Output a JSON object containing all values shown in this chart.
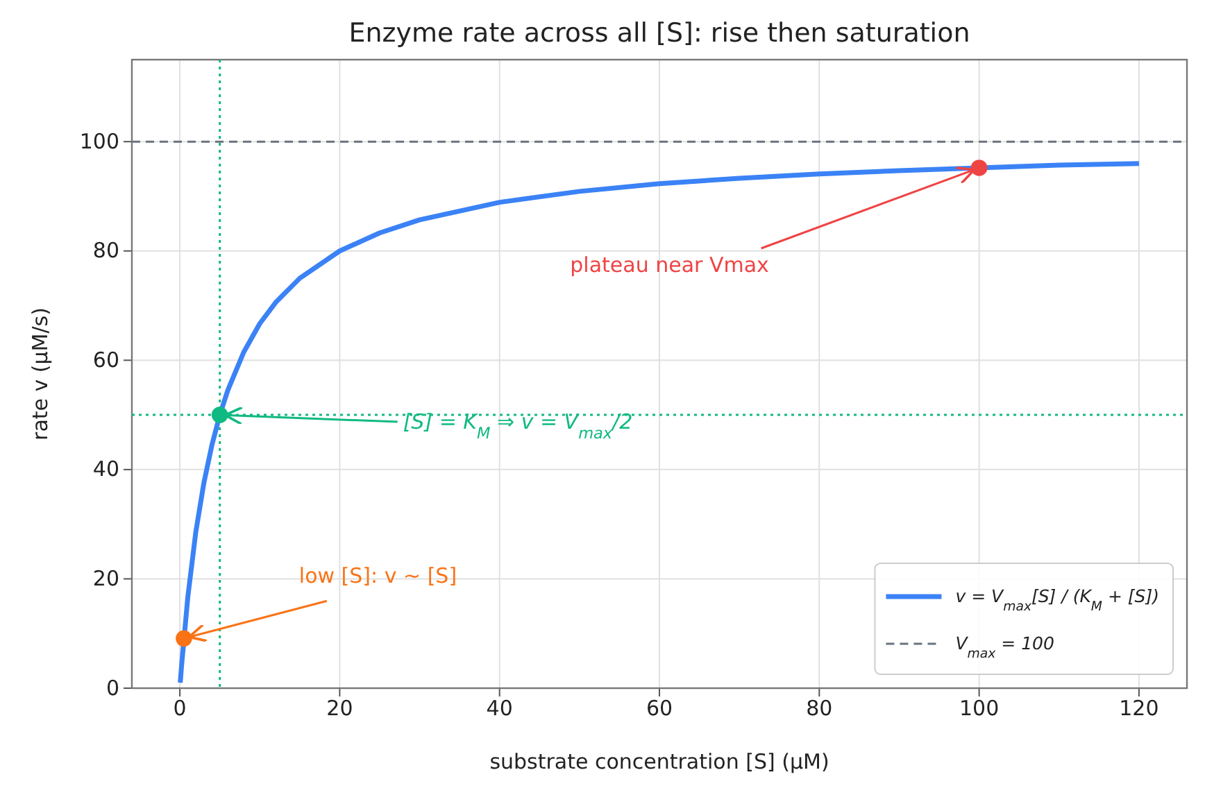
{
  "chart_data": {
    "type": "line",
    "title": "Enzyme rate across all [S]: rise then saturation",
    "xlabel": "substrate concentration [S] (μM)",
    "ylabel": "rate v (μM/s)",
    "xlim": [
      -6,
      126
    ],
    "xticks": [
      0,
      20,
      40,
      60,
      80,
      100,
      120
    ],
    "ylim": [
      0,
      115
    ],
    "yticks": [
      0,
      20,
      40,
      60,
      80,
      100
    ],
    "grid": true,
    "legend": "bottom right",
    "series": [
      {
        "name": "v = V$_{max}$[S] / (K$_{M}$ + [S])",
        "color": "#3b82f6",
        "marker": "none",
        "line_style": "solid",
        "x": [
          0.05,
          0.2,
          1,
          2,
          3,
          4,
          5,
          6,
          8,
          10,
          12,
          15,
          20,
          25,
          30,
          40,
          50,
          60,
          70,
          80,
          90,
          110,
          120
        ],
        "values": [
          1,
          3.8,
          16.7,
          28.6,
          37.5,
          44.4,
          50,
          54.5,
          61.5,
          66.7,
          70.6,
          75,
          80,
          83.3,
          85.7,
          88.9,
          90.9,
          92.3,
          93.3,
          94.1,
          94.7,
          95.7,
          96
        ]
      },
      {
        "type": "scatter",
        "marker": "circle",
        "x": [
          0.5,
          5,
          100
        ],
        "values": [
          9.1,
          50,
          95.2
        ],
        "colors": [
          "#f97316",
          "#10b981",
          "#ef4444"
        ]
      }
    ],
    "ref_lines": [
      {
        "axis": "y",
        "value": 100,
        "label": "V$_{max}$ = 100",
        "color": "#6b7280",
        "line_style": "dashed"
      },
      {
        "axis": "x",
        "value": 5,
        "color": "#10b981",
        "line_style": "dotted"
      },
      {
        "axis": "y",
        "value": 50,
        "color": "#10b981",
        "line_style": "dotted"
      }
    ],
    "annotations": [
      {
        "text": "low [S]: v ~ [S]",
        "x": 0.5,
        "y": 9.1
      },
      {
        "text": "[S] = K$_{M}$ ⇒ v = V$_{max}$/2",
        "x": 5,
        "y": 50
      },
      {
        "text": "plateau near Vmax",
        "x": 100,
        "y": 95.2
      }
    ]
  }
}
